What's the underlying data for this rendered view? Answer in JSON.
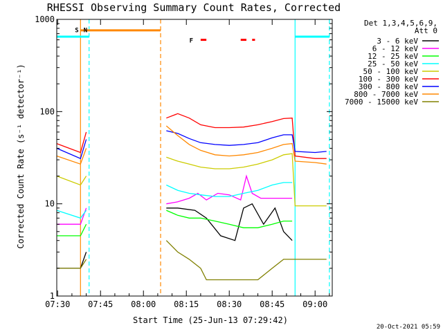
{
  "chart_data": {
    "type": "line",
    "title": "RHESSI Observing Summary Count Rates, Corrected",
    "xlabel": "Start Time (25-Jun-13 07:29:42)",
    "ylabel": "Corrected Count Rate (s⁻¹ detector⁻¹)",
    "y_scale": "log",
    "ylim": [
      1,
      1000
    ],
    "xlim": [
      "07:29:42",
      "09:06:00"
    ],
    "x_ticks": [
      "07:30",
      "07:45",
      "08:00",
      "08:15",
      "08:30",
      "08:45",
      "09:00"
    ],
    "y_ticks": [
      "1",
      "10",
      "100",
      "1000"
    ],
    "detector_info": [
      "Det 1,3,4,5,6,9,",
      "Att 0"
    ],
    "series": [
      {
        "name": "3 - 6 keV",
        "color": "#000000",
        "x": [
          "07:29:42",
          "07:38",
          "07:40",
          "08:06",
          "08:08",
          "08:12",
          "08:18",
          "08:22",
          "08:27",
          "08:32",
          "08:35",
          "08:38",
          "08:42",
          "08:46",
          "08:49",
          "08:52"
        ],
        "y": [
          2.0,
          2.0,
          3.0,
          null,
          9.0,
          9.0,
          8.5,
          7.0,
          4.5,
          4.0,
          9.0,
          10.0,
          6.0,
          9.0,
          5.0,
          4.0
        ]
      },
      {
        "name": "6 - 12 keV",
        "color": "#ff00ff",
        "x": [
          "07:29:42",
          "07:38",
          "07:40",
          "08:06",
          "08:08",
          "08:12",
          "08:16",
          "08:19",
          "08:22",
          "08:26",
          "08:30",
          "08:34",
          "08:36",
          "08:38",
          "08:41",
          "08:45",
          "08:49",
          "08:52"
        ],
        "y": [
          6.0,
          6.0,
          9.0,
          null,
          10.0,
          10.5,
          11.5,
          13.0,
          11.0,
          13.0,
          12.5,
          11.0,
          20.0,
          13.0,
          11.5,
          11.5,
          11.5,
          11.5
        ]
      },
      {
        "name": "12 - 25 keV",
        "color": "#00ff00",
        "x": [
          "07:29:42",
          "07:38",
          "07:40",
          "08:06",
          "08:08",
          "08:12",
          "08:16",
          "08:20",
          "08:25",
          "08:30",
          "08:35",
          "08:40",
          "08:45",
          "08:49",
          "08:52"
        ],
        "y": [
          4.5,
          4.5,
          6.0,
          null,
          8.5,
          7.5,
          7.0,
          7.0,
          6.5,
          6.0,
          5.5,
          5.5,
          6.0,
          6.5,
          6.5
        ]
      },
      {
        "name": "25 - 50 keV",
        "color": "#00ffff",
        "x": [
          "07:29:42",
          "07:38",
          "07:40",
          "08:06",
          "08:08",
          "08:12",
          "08:16",
          "08:20",
          "08:25",
          "08:30",
          "08:35",
          "08:40",
          "08:45",
          "08:49",
          "08:52"
        ],
        "y": [
          8.5,
          7.0,
          8.5,
          null,
          16.0,
          14.0,
          13.0,
          12.5,
          12.0,
          12.0,
          13.0,
          14.0,
          16.0,
          17.0,
          17.0
        ]
      },
      {
        "name": "50 - 100 keV",
        "color": "#cccc00",
        "x": [
          "07:29:42",
          "07:38",
          "07:40",
          "08:06",
          "08:08",
          "08:12",
          "08:16",
          "08:20",
          "08:25",
          "08:30",
          "08:35",
          "08:40",
          "08:45",
          "08:49",
          "08:52",
          "08:53",
          "09:00",
          "09:04"
        ],
        "y": [
          20.0,
          16.0,
          20.0,
          null,
          32.0,
          29.0,
          27.0,
          25.0,
          24.0,
          24.0,
          25.0,
          27.0,
          30.0,
          34.0,
          35.0,
          9.5,
          9.5,
          9.5
        ]
      },
      {
        "name": "100 - 300 keV",
        "color": "#ff0000",
        "x": [
          "07:29:42",
          "07:38",
          "07:40",
          "08:06",
          "08:08",
          "08:12",
          "08:16",
          "08:20",
          "08:25",
          "08:30",
          "08:35",
          "08:40",
          "08:45",
          "08:49",
          "08:52",
          "08:53",
          "09:00",
          "09:04"
        ],
        "y": [
          45.0,
          36.0,
          60.0,
          null,
          85.0,
          95.0,
          85.0,
          72.0,
          67.0,
          67.0,
          68.0,
          72.0,
          78.0,
          84.0,
          85.0,
          33.0,
          31.0,
          31.0
        ]
      },
      {
        "name": "300 - 800 keV",
        "color": "#0000ff",
        "x": [
          "07:29:42",
          "07:38",
          "07:40",
          "08:06",
          "08:08",
          "08:12",
          "08:16",
          "08:20",
          "08:25",
          "08:30",
          "08:35",
          "08:40",
          "08:45",
          "08:49",
          "08:52",
          "08:53",
          "09:00",
          "09:04"
        ],
        "y": [
          40.0,
          31.0,
          50.0,
          null,
          62.0,
          58.0,
          51.0,
          46.0,
          44.0,
          43.0,
          44.0,
          46.0,
          52.0,
          56.0,
          56.0,
          37.0,
          36.0,
          37.0
        ]
      },
      {
        "name": "800 - 7000 keV",
        "color": "#ff8800",
        "x": [
          "07:29:42",
          "07:38",
          "07:40",
          "08:06",
          "08:08",
          "08:12",
          "08:16",
          "08:20",
          "08:25",
          "08:30",
          "08:35",
          "08:40",
          "08:45",
          "08:49",
          "08:52",
          "08:53",
          "09:00",
          "09:04"
        ],
        "y": [
          33.0,
          27.0,
          40.0,
          null,
          70.0,
          55.0,
          44.0,
          38.0,
          34.0,
          33.0,
          34.0,
          36.0,
          40.0,
          44.0,
          45.0,
          29.0,
          28.0,
          27.0
        ]
      },
      {
        "name": "7000 - 15000 keV",
        "color": "#808000",
        "x": [
          "07:29:42",
          "07:38",
          "07:40",
          "08:06",
          "08:08",
          "08:12",
          "08:16",
          "08:20",
          "08:22",
          "08:30",
          "08:40",
          "08:45",
          "08:49",
          "08:52",
          "08:53",
          "09:00",
          "09:04"
        ],
        "y": [
          2.0,
          2.0,
          2.5,
          null,
          4.0,
          3.0,
          2.5,
          2.0,
          1.5,
          1.5,
          1.5,
          2.0,
          2.5,
          2.5,
          2.5,
          2.5,
          2.5
        ]
      }
    ],
    "annotations": [
      {
        "label": "S",
        "color": "#ff8800",
        "at": "07:38"
      },
      {
        "label": "N",
        "color": "#00ffff",
        "at": "07:41"
      },
      {
        "label": "F",
        "color": "#ff0000",
        "at": "08:18"
      }
    ],
    "bars": [
      {
        "color": "#00ffff",
        "y": 650,
        "x": [
          "07:29:42",
          "07:41"
        ]
      },
      {
        "color": "#ff8800",
        "y": 760,
        "x": [
          "07:38",
          "08:06"
        ]
      },
      {
        "color": "#ff0000",
        "y": 600,
        "x": [
          "08:20",
          "08:22"
        ]
      },
      {
        "color": "#ff0000",
        "y": 600,
        "x": [
          "08:34",
          "08:36"
        ]
      },
      {
        "color": "#ff0000",
        "y": 600,
        "x": [
          "08:38",
          "08:39"
        ]
      },
      {
        "color": "#00ffff",
        "y": 650,
        "x": [
          "08:53",
          "09:05"
        ]
      }
    ],
    "vlines": [
      {
        "color": "#ff8800",
        "x": "07:38",
        "style": "solid"
      },
      {
        "color": "#00ffff",
        "x": "07:41",
        "style": "dashed"
      },
      {
        "color": "#ff8800",
        "x": "08:06",
        "style": "dashed"
      },
      {
        "color": "#00ffff",
        "x": "08:53",
        "style": "solid"
      },
      {
        "color": "#00ffff",
        "x": "09:05",
        "style": "dashed"
      }
    ],
    "footer_date": "20-Oct-2021 05:59"
  }
}
